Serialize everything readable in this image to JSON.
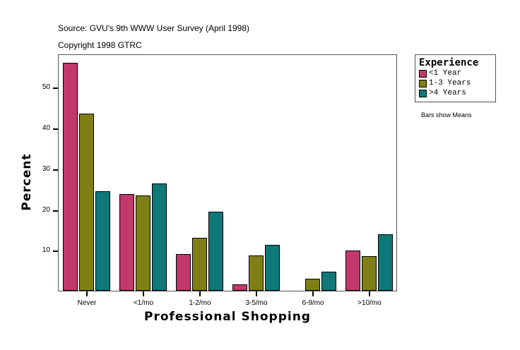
{
  "header": {
    "source": "Source: GVU's 9th WWW User Survey (April 1998)",
    "copyright": "Copyright 1998 GTRC"
  },
  "legend": {
    "title": "Experience",
    "items": [
      {
        "label": "<1 Year",
        "color": "#c0396a"
      },
      {
        "label": "1-3 Years",
        "color": "#807f15"
      },
      {
        "label": ">4 Years",
        "color": "#0f7878"
      }
    ]
  },
  "note": "Bars show Means",
  "chart_data": {
    "type": "bar",
    "title": "",
    "xlabel": "Professional Shopping",
    "ylabel": "Percent",
    "categories": [
      "Never",
      "<1/mo",
      "1-2/mo",
      "3-5/mo",
      "6-9/mo",
      ">10/mo"
    ],
    "series": [
      {
        "name": "<1 Year",
        "color": "#c0396a",
        "values": [
          55.9,
          23.7,
          9.0,
          1.6,
          0.0,
          9.9
        ]
      },
      {
        "name": "1-3 Years",
        "color": "#807f15",
        "values": [
          43.5,
          23.4,
          13.0,
          8.7,
          2.9,
          8.5
        ]
      },
      {
        "name": ">4 Years",
        "color": "#0f7878",
        "values": [
          24.4,
          26.3,
          19.4,
          11.3,
          4.7,
          13.9
        ]
      }
    ],
    "yticks": [
      10,
      20,
      30,
      40,
      50
    ],
    "ylim": [
      0,
      58
    ],
    "grid": false,
    "legend_position": "right"
  }
}
